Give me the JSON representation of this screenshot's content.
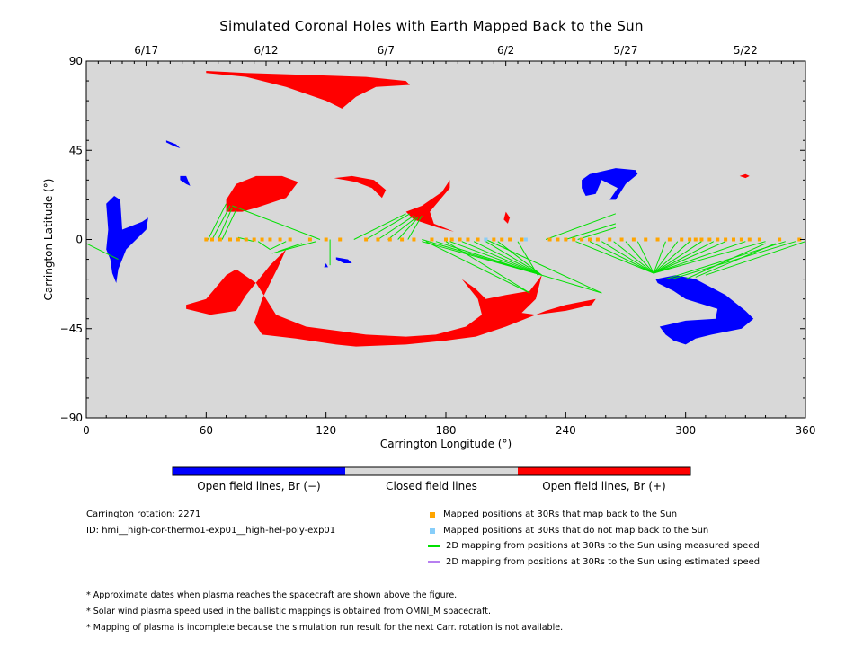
{
  "title": "Simulated Coronal Holes with Earth Mapped Back to the Sun",
  "chart_data": {
    "type": "map",
    "xlabel": "Carrington Longitude (°)",
    "ylabel": "Carrington Latitude (°)",
    "xlim": [
      0,
      360
    ],
    "ylim": [
      -90,
      90
    ],
    "x_ticks": [
      0,
      60,
      120,
      180,
      240,
      300,
      360
    ],
    "y_ticks": [
      90,
      45,
      0,
      -45,
      -90
    ],
    "y_tick_labels": [
      "90",
      "45",
      "0",
      "−45",
      "−90"
    ],
    "date_ticks": [
      {
        "label": "6/17",
        "lon": 30
      },
      {
        "label": "6/12",
        "lon": 90
      },
      {
        "label": "6/7",
        "lon": 150
      },
      {
        "label": "6/2",
        "lon": 210
      },
      {
        "label": "5/27",
        "lon": 270
      },
      {
        "label": "5/22",
        "lon": 330
      }
    ],
    "background_color": "#d8d8d8",
    "regions": [
      {
        "polarity": "positive",
        "color": "#ff0000",
        "points": [
          [
            60,
            85
          ],
          [
            80,
            84
          ],
          [
            110,
            83
          ],
          [
            140,
            82
          ],
          [
            160,
            80
          ],
          [
            162,
            78
          ],
          [
            145,
            77
          ],
          [
            135,
            72
          ],
          [
            128,
            66
          ],
          [
            120,
            70
          ],
          [
            100,
            77
          ],
          [
            80,
            82
          ],
          [
            60,
            84
          ]
        ]
      },
      {
        "polarity": "positive",
        "color": "#ff0000",
        "points": [
          [
            70,
            14
          ],
          [
            78,
            14
          ],
          [
            85,
            16
          ],
          [
            100,
            21
          ],
          [
            106,
            29
          ],
          [
            98,
            32
          ],
          [
            85,
            32
          ],
          [
            75,
            28
          ],
          [
            70,
            20
          ]
        ]
      },
      {
        "polarity": "positive",
        "color": "#ff0000",
        "points": [
          [
            124,
            31
          ],
          [
            135,
            29
          ],
          [
            143,
            26
          ],
          [
            148,
            21
          ],
          [
            150,
            25
          ],
          [
            144,
            30
          ],
          [
            133,
            32
          ]
        ]
      },
      {
        "polarity": "positive",
        "color": "#ff0000",
        "points": [
          [
            160,
            14
          ],
          [
            168,
            17
          ],
          [
            178,
            24
          ],
          [
            182,
            30
          ],
          [
            182,
            26
          ],
          [
            172,
            14
          ],
          [
            174,
            8
          ],
          [
            184,
            4
          ],
          [
            176,
            6
          ],
          [
            164,
            10
          ]
        ]
      },
      {
        "polarity": "positive",
        "color": "#ff0000",
        "points": [
          [
            330,
            33
          ],
          [
            332,
            32
          ],
          [
            330,
            31
          ],
          [
            327,
            32
          ]
        ]
      },
      {
        "polarity": "positive",
        "color": "#ff0000",
        "points": [
          [
            50,
            -35
          ],
          [
            62,
            -38
          ],
          [
            75,
            -36
          ],
          [
            80,
            -28
          ],
          [
            92,
            -13
          ],
          [
            100,
            -5
          ],
          [
            96,
            -14
          ],
          [
            88,
            -30
          ],
          [
            84,
            -42
          ],
          [
            88,
            -48
          ],
          [
            105,
            -50
          ],
          [
            125,
            -53
          ],
          [
            135,
            -54
          ],
          [
            160,
            -53
          ],
          [
            180,
            -51
          ],
          [
            195,
            -49
          ],
          [
            210,
            -44
          ],
          [
            230,
            -36
          ],
          [
            240,
            -33
          ],
          [
            255,
            -30
          ],
          [
            253,
            -33
          ],
          [
            240,
            -36
          ],
          [
            225,
            -38
          ],
          [
            218,
            -37
          ],
          [
            225,
            -30
          ],
          [
            228,
            -18
          ],
          [
            222,
            -26
          ],
          [
            210,
            -28
          ],
          [
            200,
            -30
          ],
          [
            195,
            -25
          ],
          [
            188,
            -20
          ],
          [
            196,
            -30
          ],
          [
            198,
            -38
          ],
          [
            190,
            -44
          ],
          [
            175,
            -48
          ],
          [
            160,
            -49
          ],
          [
            140,
            -48
          ],
          [
            110,
            -44
          ],
          [
            95,
            -38
          ],
          [
            85,
            -22
          ],
          [
            75,
            -15
          ],
          [
            70,
            -18
          ],
          [
            60,
            -30
          ],
          [
            50,
            -33
          ]
        ]
      },
      {
        "polarity": "positive",
        "color": "#ff0000",
        "points": [
          [
            210,
            14
          ],
          [
            212,
            11
          ],
          [
            211,
            8
          ],
          [
            209,
            10
          ]
        ]
      },
      {
        "polarity": "negative",
        "color": "#0000ff",
        "points": [
          [
            10,
            18
          ],
          [
            14,
            22
          ],
          [
            17,
            20
          ],
          [
            18,
            5
          ],
          [
            28,
            9
          ],
          [
            31,
            11
          ],
          [
            30,
            5
          ],
          [
            20,
            -5
          ],
          [
            16,
            -15
          ],
          [
            15,
            -22
          ],
          [
            13,
            -17
          ],
          [
            12,
            -10
          ],
          [
            10,
            -5
          ],
          [
            11,
            5
          ]
        ]
      },
      {
        "polarity": "negative",
        "color": "#0000ff",
        "points": [
          [
            40,
            50
          ],
          [
            45,
            48
          ],
          [
            47,
            46
          ],
          [
            44,
            47
          ],
          [
            40,
            49
          ]
        ]
      },
      {
        "polarity": "negative",
        "color": "#0000ff",
        "points": [
          [
            47,
            32
          ],
          [
            50,
            32
          ],
          [
            52,
            27
          ],
          [
            50,
            28
          ],
          [
            47,
            30
          ]
        ]
      },
      {
        "polarity": "negative",
        "color": "#0000ff",
        "points": [
          [
            248,
            30
          ],
          [
            252,
            33
          ],
          [
            265,
            36
          ],
          [
            275,
            35
          ],
          [
            276,
            33
          ],
          [
            270,
            28
          ],
          [
            265,
            20
          ],
          [
            262,
            20
          ],
          [
            266,
            26
          ],
          [
            258,
            30
          ],
          [
            255,
            23
          ],
          [
            250,
            22
          ],
          [
            248,
            26
          ]
        ]
      },
      {
        "polarity": "negative",
        "color": "#0000ff",
        "points": [
          [
            285,
            -20
          ],
          [
            295,
            -18
          ],
          [
            305,
            -20
          ],
          [
            320,
            -28
          ],
          [
            330,
            -36
          ],
          [
            334,
            -40
          ],
          [
            328,
            -45
          ],
          [
            313,
            -48
          ],
          [
            305,
            -50
          ],
          [
            300,
            -53
          ],
          [
            294,
            -51
          ],
          [
            290,
            -48
          ],
          [
            287,
            -44
          ],
          [
            300,
            -41
          ],
          [
            315,
            -40
          ],
          [
            316,
            -35
          ],
          [
            300,
            -30
          ],
          [
            294,
            -26
          ],
          [
            290,
            -24
          ],
          [
            286,
            -22
          ]
        ]
      },
      {
        "polarity": "negative",
        "color": "#0000ff",
        "points": [
          [
            125,
            -9
          ],
          [
            131,
            -10
          ],
          [
            133,
            -12
          ],
          [
            129,
            -12
          ],
          [
            125,
            -10
          ]
        ]
      },
      {
        "polarity": "negative",
        "color": "#0000ff",
        "points": [
          [
            120,
            -12
          ],
          [
            121,
            -14
          ],
          [
            119,
            -14
          ]
        ]
      }
    ],
    "mapped_points_lon": [
      60,
      63,
      67,
      72,
      76,
      80,
      84,
      88,
      92,
      97,
      102,
      112,
      120,
      127,
      140,
      146,
      152,
      158,
      164,
      173,
      180,
      183,
      187,
      191,
      196,
      200,
      204,
      208,
      212,
      218,
      232,
      236,
      240,
      244,
      248,
      252,
      256,
      262,
      268,
      274,
      280,
      286,
      292,
      298,
      302,
      305,
      308,
      312,
      316,
      320,
      324,
      328,
      332,
      337,
      347,
      357
    ],
    "unmapped_points_lon": [
      200,
      220
    ],
    "mapping_lines_measured": [
      [
        [
          61,
          0
        ],
        [
          70,
          18
        ]
      ],
      [
        [
          63,
          0
        ],
        [
          72,
          17
        ]
      ],
      [
        [
          66,
          0
        ],
        [
          73,
          16
        ]
      ],
      [
        [
          68,
          0
        ],
        [
          75,
          15
        ]
      ],
      [
        [
          73,
          17
        ],
        [
          117,
          0
        ]
      ],
      [
        [
          76,
          1
        ],
        [
          84,
          -1
        ]
      ],
      [
        [
          86,
          -1
        ],
        [
          92,
          -5
        ]
      ],
      [
        [
          92,
          -5
        ],
        [
          100,
          -1
        ]
      ],
      [
        [
          93,
          -7
        ],
        [
          115,
          -1
        ]
      ],
      [
        [
          96,
          -6
        ],
        [
          108,
          -2
        ]
      ],
      [
        [
          122,
          -13
        ],
        [
          122,
          0
        ]
      ],
      [
        [
          134,
          0
        ],
        [
          160,
          13
        ]
      ],
      [
        [
          140,
          0
        ],
        [
          162,
          13
        ]
      ],
      [
        [
          146,
          0
        ],
        [
          164,
          12
        ]
      ],
      [
        [
          151,
          0
        ],
        [
          165,
          11
        ]
      ],
      [
        [
          156,
          0
        ],
        [
          166,
          11
        ]
      ],
      [
        [
          161,
          0
        ],
        [
          168,
          12
        ]
      ],
      [
        [
          168,
          -1
        ],
        [
          228,
          -18
        ]
      ],
      [
        [
          175,
          -1
        ],
        [
          228,
          -18
        ]
      ],
      [
        [
          182,
          -1
        ],
        [
          228,
          -18
        ]
      ],
      [
        [
          188,
          -1
        ],
        [
          228,
          -18
        ]
      ],
      [
        [
          194,
          -1
        ],
        [
          228,
          -18
        ]
      ],
      [
        [
          200,
          -1
        ],
        [
          228,
          -18
        ]
      ],
      [
        [
          206,
          -1
        ],
        [
          228,
          -18
        ]
      ],
      [
        [
          170,
          -1
        ],
        [
          222,
          -27
        ]
      ],
      [
        [
          180,
          -1
        ],
        [
          222,
          -27
        ]
      ],
      [
        [
          216,
          -1
        ],
        [
          226,
          -18
        ]
      ],
      [
        [
          168,
          0
        ],
        [
          258,
          -27
        ]
      ],
      [
        [
          200,
          0
        ],
        [
          258,
          -27
        ]
      ],
      [
        [
          230,
          0
        ],
        [
          265,
          13
        ]
      ],
      [
        [
          240,
          0
        ],
        [
          265,
          8
        ]
      ],
      [
        [
          246,
          0
        ],
        [
          265,
          6
        ]
      ],
      [
        [
          245,
          -1
        ],
        [
          284,
          -17
        ]
      ],
      [
        [
          252,
          -1
        ],
        [
          284,
          -17
        ]
      ],
      [
        [
          258,
          -1
        ],
        [
          284,
          -17
        ]
      ],
      [
        [
          264,
          -1
        ],
        [
          284,
          -17
        ]
      ],
      [
        [
          270,
          -1
        ],
        [
          284,
          -17
        ]
      ],
      [
        [
          276,
          -1
        ],
        [
          284,
          -17
        ]
      ],
      [
        [
          284,
          -17
        ],
        [
          290,
          -1
        ]
      ],
      [
        [
          284,
          -17
        ],
        [
          296,
          -1
        ]
      ],
      [
        [
          284,
          -17
        ],
        [
          302,
          -1
        ]
      ],
      [
        [
          284,
          -17
        ],
        [
          308,
          -1
        ]
      ],
      [
        [
          284,
          -17
        ],
        [
          314,
          -1
        ]
      ],
      [
        [
          284,
          -17
        ],
        [
          320,
          -1
        ]
      ],
      [
        [
          284,
          -17
        ],
        [
          330,
          -1
        ]
      ],
      [
        [
          284,
          -17
        ],
        [
          340,
          -1
        ]
      ],
      [
        [
          290,
          -20
        ],
        [
          350,
          -1
        ]
      ],
      [
        [
          293,
          -20
        ],
        [
          355,
          -1
        ]
      ],
      [
        [
          300,
          -20
        ],
        [
          340,
          -2
        ]
      ],
      [
        [
          305,
          -19
        ],
        [
          345,
          -2
        ]
      ],
      [
        [
          310,
          -18
        ],
        [
          360,
          -1
        ]
      ],
      [
        [
          0,
          -2
        ],
        [
          12,
          -8
        ]
      ],
      [
        [
          12,
          -8
        ],
        [
          16,
          -10
        ]
      ]
    ]
  },
  "colorbar": {
    "segments": [
      {
        "color": "#0000ff",
        "label": "Open field lines, Br (−)"
      },
      {
        "color": "#d8d8d8",
        "label": "Closed field lines"
      },
      {
        "color": "#ff0000",
        "label": "Open field lines, Br (+)"
      }
    ]
  },
  "info": {
    "rotation": "Carrington rotation: 2271",
    "id": "ID: hmi__high-cor-thermo1-exp01__high-hel-poly-exp01"
  },
  "legend": [
    {
      "marker": "square",
      "color": "#ffa500",
      "label": "Mapped positions at 30Rs that map back to the Sun"
    },
    {
      "marker": "square",
      "color": "#87cefa",
      "label": "Mapped positions at 30Rs that do not map back to the Sun"
    },
    {
      "marker": "line",
      "color": "#00e000",
      "label": "2D mapping from positions at 30Rs to the Sun using measured speed"
    },
    {
      "marker": "line",
      "color": "#b77ff0",
      "label": "2D mapping from positions at 30Rs to the Sun using estimated speed"
    }
  ],
  "notes": [
    "* Approximate dates when plasma reaches the spacecraft are shown above the figure.",
    "* Solar wind plasma speed used in the ballistic mappings is obtained from OMNI_M spacecraft.",
    "* Mapping of plasma is incomplete because the simulation run result for the next Carr. rotation is not available."
  ]
}
